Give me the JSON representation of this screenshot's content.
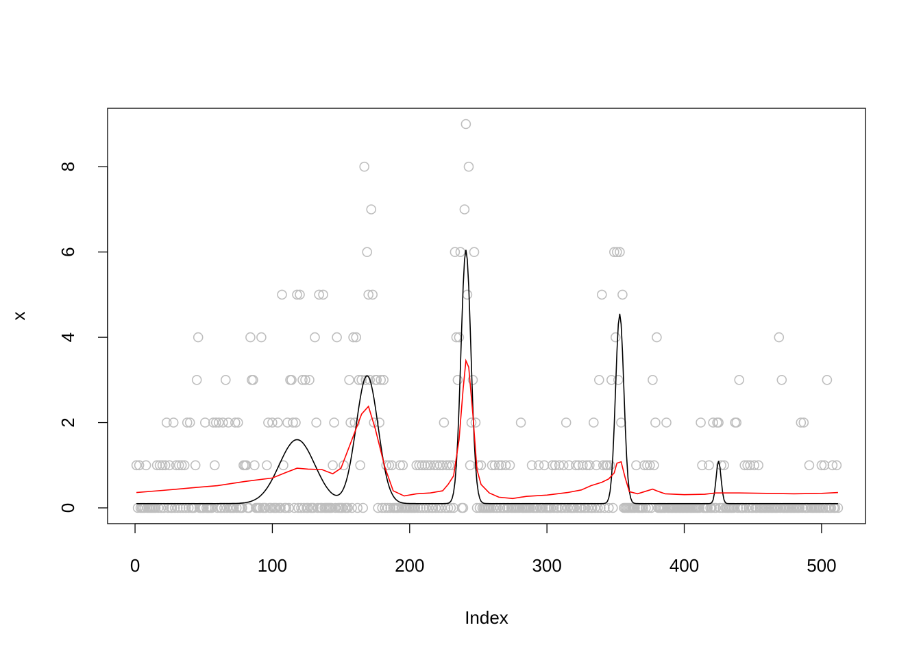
{
  "chart_data": {
    "type": "scatter",
    "title": "",
    "xlabel": "Index",
    "ylabel": "x",
    "xlim": [
      -20,
      532
    ],
    "ylim": [
      -0.37,
      9.37
    ],
    "x_ticks": [
      0,
      100,
      200,
      300,
      400,
      500
    ],
    "y_ticks": [
      0,
      2,
      4,
      6,
      8
    ],
    "grid": false,
    "legend": "none",
    "colors": {
      "points": "#bebebe",
      "black_curve": "#000000",
      "red_curve": "#ff0000"
    },
    "points_nonzero": [
      [
        1,
        1
      ],
      [
        3,
        1
      ],
      [
        8,
        1
      ],
      [
        16,
        1
      ],
      [
        18,
        1
      ],
      [
        20,
        1
      ],
      [
        22,
        1
      ],
      [
        23,
        2
      ],
      [
        25,
        1
      ],
      [
        28,
        2
      ],
      [
        30,
        1
      ],
      [
        32,
        1
      ],
      [
        34,
        1
      ],
      [
        36,
        1
      ],
      [
        38,
        2
      ],
      [
        40,
        2
      ],
      [
        44,
        1
      ],
      [
        45,
        3
      ],
      [
        46,
        4
      ],
      [
        51,
        2
      ],
      [
        57,
        2
      ],
      [
        58,
        1
      ],
      [
        59,
        2
      ],
      [
        61,
        2
      ],
      [
        64,
        2
      ],
      [
        66,
        3
      ],
      [
        68,
        2
      ],
      [
        73,
        2
      ],
      [
        75,
        2
      ],
      [
        79,
        1
      ],
      [
        80,
        1
      ],
      [
        81,
        1
      ],
      [
        84,
        4
      ],
      [
        85,
        3
      ],
      [
        86,
        3
      ],
      [
        87,
        1
      ],
      [
        92,
        4
      ],
      [
        96,
        1
      ],
      [
        97,
        2
      ],
      [
        100,
        2
      ],
      [
        104,
        2
      ],
      [
        107,
        5
      ],
      [
        108,
        1
      ],
      [
        111,
        2
      ],
      [
        113,
        3
      ],
      [
        114,
        3
      ],
      [
        115,
        2
      ],
      [
        117,
        2
      ],
      [
        118,
        5
      ],
      [
        120,
        5
      ],
      [
        122,
        3
      ],
      [
        124,
        3
      ],
      [
        127,
        3
      ],
      [
        131,
        4
      ],
      [
        132,
        2
      ],
      [
        134,
        5
      ],
      [
        137,
        5
      ],
      [
        144,
        1
      ],
      [
        145,
        2
      ],
      [
        147,
        4
      ],
      [
        152,
        1
      ],
      [
        156,
        3
      ],
      [
        157,
        2
      ],
      [
        159,
        4
      ],
      [
        160,
        2
      ],
      [
        161,
        4
      ],
      [
        163,
        3
      ],
      [
        164,
        1
      ],
      [
        165,
        3
      ],
      [
        167,
        8
      ],
      [
        168,
        3
      ],
      [
        169,
        6
      ],
      [
        170,
        5
      ],
      [
        171,
        3
      ],
      [
        172,
        7
      ],
      [
        173,
        5
      ],
      [
        174,
        2
      ],
      [
        175,
        3
      ],
      [
        176,
        3
      ],
      [
        178,
        2
      ],
      [
        179,
        3
      ],
      [
        181,
        3
      ],
      [
        183,
        1
      ],
      [
        185,
        1
      ],
      [
        187,
        1
      ],
      [
        193,
        1
      ],
      [
        195,
        1
      ],
      [
        205,
        1
      ],
      [
        207,
        1
      ],
      [
        209,
        1
      ],
      [
        211,
        1
      ],
      [
        213,
        1
      ],
      [
        215,
        1
      ],
      [
        218,
        1
      ],
      [
        220,
        1
      ],
      [
        222,
        1
      ],
      [
        224,
        1
      ],
      [
        225,
        2
      ],
      [
        227,
        1
      ],
      [
        229,
        1
      ],
      [
        231,
        1
      ],
      [
        233,
        6
      ],
      [
        234,
        4
      ],
      [
        235,
        3
      ],
      [
        236,
        4
      ],
      [
        237,
        6
      ],
      [
        240,
        7
      ],
      [
        241,
        9
      ],
      [
        242,
        5
      ],
      [
        243,
        8
      ],
      [
        244,
        1
      ],
      [
        245,
        2
      ],
      [
        246,
        3
      ],
      [
        247,
        6
      ],
      [
        248,
        2
      ],
      [
        250,
        1
      ],
      [
        252,
        1
      ],
      [
        260,
        1
      ],
      [
        262,
        1
      ],
      [
        265,
        1
      ],
      [
        267,
        1
      ],
      [
        270,
        1
      ],
      [
        273,
        1
      ],
      [
        281,
        2
      ],
      [
        289,
        1
      ],
      [
        294,
        1
      ],
      [
        298,
        1
      ],
      [
        304,
        1
      ],
      [
        306,
        1
      ],
      [
        309,
        1
      ],
      [
        312,
        1
      ],
      [
        314,
        2
      ],
      [
        316,
        1
      ],
      [
        321,
        1
      ],
      [
        323,
        1
      ],
      [
        326,
        1
      ],
      [
        329,
        1
      ],
      [
        331,
        1
      ],
      [
        334,
        2
      ],
      [
        336,
        1
      ],
      [
        338,
        3
      ],
      [
        340,
        5
      ],
      [
        341,
        1
      ],
      [
        343,
        1
      ],
      [
        344,
        1
      ],
      [
        346,
        1
      ],
      [
        347,
        3
      ],
      [
        349,
        6
      ],
      [
        350,
        4
      ],
      [
        351,
        6
      ],
      [
        352,
        3
      ],
      [
        353,
        6
      ],
      [
        354,
        2
      ],
      [
        355,
        5
      ],
      [
        365,
        1
      ],
      [
        371,
        1
      ],
      [
        373,
        1
      ],
      [
        375,
        1
      ],
      [
        377,
        3
      ],
      [
        378,
        1
      ],
      [
        379,
        2
      ],
      [
        380,
        4
      ],
      [
        387,
        2
      ],
      [
        412,
        2
      ],
      [
        413,
        1
      ],
      [
        418,
        1
      ],
      [
        421,
        2
      ],
      [
        424,
        2
      ],
      [
        425,
        2
      ],
      [
        427,
        1
      ],
      [
        429,
        1
      ],
      [
        437,
        2
      ],
      [
        438,
        2
      ],
      [
        440,
        3
      ],
      [
        444,
        1
      ],
      [
        446,
        1
      ],
      [
        448,
        1
      ],
      [
        451,
        1
      ],
      [
        454,
        1
      ],
      [
        469,
        4
      ],
      [
        471,
        3
      ],
      [
        485,
        2
      ],
      [
        487,
        2
      ],
      [
        491,
        1
      ],
      [
        500,
        1
      ],
      [
        502,
        1
      ],
      [
        504,
        3
      ],
      [
        508,
        1
      ],
      [
        511,
        1
      ]
    ],
    "zero_range": [
      1,
      512
    ],
    "black_curve": {
      "baseline": 0.1,
      "bumps": [
        {
          "center": 118,
          "height": 1.5,
          "sd": 13
        },
        {
          "center": 169,
          "height": 3.0,
          "sd": 8
        },
        {
          "center": 241,
          "height": 5.95,
          "sd": 3.6
        },
        {
          "center": 353,
          "height": 4.45,
          "sd": 3.0
        },
        {
          "center": 425,
          "height": 1.0,
          "sd": 1.8
        }
      ]
    },
    "red_curve": [
      [
        1,
        0.36
      ],
      [
        20,
        0.41
      ],
      [
        45,
        0.48
      ],
      [
        60,
        0.52
      ],
      [
        80,
        0.62
      ],
      [
        100,
        0.7
      ],
      [
        110,
        0.83
      ],
      [
        118,
        0.93
      ],
      [
        126,
        0.91
      ],
      [
        136,
        0.9
      ],
      [
        144,
        0.8
      ],
      [
        150,
        0.93
      ],
      [
        158,
        1.6
      ],
      [
        165,
        2.2
      ],
      [
        170,
        2.38
      ],
      [
        175,
        1.85
      ],
      [
        182,
        0.95
      ],
      [
        188,
        0.4
      ],
      [
        196,
        0.28
      ],
      [
        205,
        0.33
      ],
      [
        215,
        0.35
      ],
      [
        224,
        0.4
      ],
      [
        228,
        0.55
      ],
      [
        232,
        0.75
      ],
      [
        236,
        1.6
      ],
      [
        239,
        2.8
      ],
      [
        241,
        3.45
      ],
      [
        243,
        3.3
      ],
      [
        246,
        2.2
      ],
      [
        249,
        0.9
      ],
      [
        252,
        0.55
      ],
      [
        258,
        0.35
      ],
      [
        265,
        0.25
      ],
      [
        275,
        0.22
      ],
      [
        285,
        0.27
      ],
      [
        300,
        0.3
      ],
      [
        315,
        0.36
      ],
      [
        325,
        0.42
      ],
      [
        332,
        0.52
      ],
      [
        340,
        0.6
      ],
      [
        345,
        0.68
      ],
      [
        349,
        0.82
      ],
      [
        351,
        1.05
      ],
      [
        354,
        1.08
      ],
      [
        357,
        0.7
      ],
      [
        360,
        0.38
      ],
      [
        366,
        0.33
      ],
      [
        371,
        0.38
      ],
      [
        377,
        0.44
      ],
      [
        380,
        0.4
      ],
      [
        386,
        0.33
      ],
      [
        400,
        0.31
      ],
      [
        415,
        0.32
      ],
      [
        423,
        0.35
      ],
      [
        440,
        0.35
      ],
      [
        460,
        0.34
      ],
      [
        480,
        0.33
      ],
      [
        500,
        0.34
      ],
      [
        512,
        0.36
      ]
    ]
  },
  "labels": {
    "xlabel": "Index",
    "ylabel": "x"
  }
}
